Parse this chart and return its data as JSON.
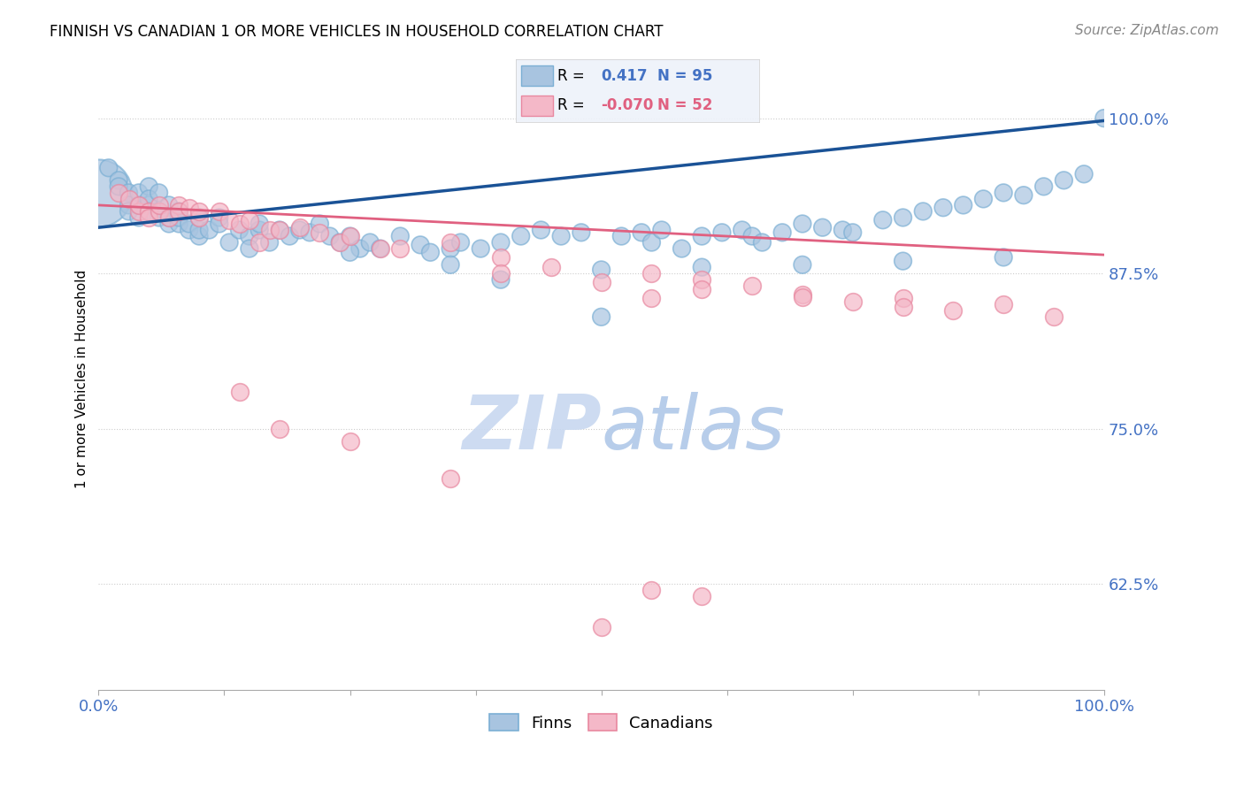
{
  "title": "FINNISH VS CANADIAN 1 OR MORE VEHICLES IN HOUSEHOLD CORRELATION CHART",
  "source": "Source: ZipAtlas.com",
  "ylabel": "1 or more Vehicles in Household",
  "xlim": [
    0.0,
    1.0
  ],
  "ylim": [
    0.54,
    1.04
  ],
  "yticks": [
    0.625,
    0.75,
    0.875,
    1.0
  ],
  "ytick_labels": [
    "62.5%",
    "75.0%",
    "87.5%",
    "100.0%"
  ],
  "xticks": [
    0.0,
    0.125,
    0.25,
    0.375,
    0.5,
    0.625,
    0.75,
    0.875,
    1.0
  ],
  "xtick_labels": [
    "0.0%",
    "",
    "",
    "",
    "",
    "",
    "",
    "",
    "100.0%"
  ],
  "blue_R": 0.417,
  "blue_N": 95,
  "pink_R": -0.07,
  "pink_N": 52,
  "blue_scatter_x": [
    0.01,
    0.02,
    0.02,
    0.03,
    0.03,
    0.03,
    0.04,
    0.04,
    0.04,
    0.05,
    0.05,
    0.05,
    0.05,
    0.06,
    0.06,
    0.06,
    0.07,
    0.07,
    0.07,
    0.08,
    0.08,
    0.08,
    0.09,
    0.09,
    0.1,
    0.1,
    0.1,
    0.11,
    0.12,
    0.12,
    0.13,
    0.14,
    0.15,
    0.16,
    0.16,
    0.17,
    0.18,
    0.19,
    0.2,
    0.21,
    0.22,
    0.23,
    0.24,
    0.25,
    0.26,
    0.27,
    0.28,
    0.3,
    0.32,
    0.33,
    0.35,
    0.36,
    0.38,
    0.4,
    0.42,
    0.44,
    0.46,
    0.48,
    0.5,
    0.52,
    0.54,
    0.55,
    0.56,
    0.58,
    0.6,
    0.62,
    0.64,
    0.65,
    0.66,
    0.68,
    0.7,
    0.72,
    0.74,
    0.75,
    0.78,
    0.8,
    0.82,
    0.84,
    0.86,
    0.88,
    0.9,
    0.92,
    0.94,
    0.96,
    0.98,
    1.0,
    0.4,
    0.5,
    0.35,
    0.6,
    0.7,
    0.8,
    0.9,
    0.25,
    0.15
  ],
  "blue_scatter_y": [
    0.96,
    0.95,
    0.945,
    0.94,
    0.93,
    0.925,
    0.92,
    0.93,
    0.94,
    0.945,
    0.93,
    0.925,
    0.935,
    0.92,
    0.925,
    0.94,
    0.915,
    0.92,
    0.93,
    0.915,
    0.92,
    0.925,
    0.91,
    0.915,
    0.905,
    0.91,
    0.92,
    0.91,
    0.92,
    0.915,
    0.9,
    0.91,
    0.905,
    0.91,
    0.915,
    0.9,
    0.91,
    0.905,
    0.91,
    0.908,
    0.915,
    0.905,
    0.9,
    0.905,
    0.895,
    0.9,
    0.895,
    0.905,
    0.898,
    0.892,
    0.895,
    0.9,
    0.895,
    0.9,
    0.905,
    0.91,
    0.905,
    0.908,
    0.84,
    0.905,
    0.908,
    0.9,
    0.91,
    0.895,
    0.905,
    0.908,
    0.91,
    0.905,
    0.9,
    0.908,
    0.915,
    0.912,
    0.91,
    0.908,
    0.918,
    0.92,
    0.925,
    0.928,
    0.93,
    0.935,
    0.94,
    0.938,
    0.945,
    0.95,
    0.955,
    1.0,
    0.87,
    0.878,
    0.882,
    0.88,
    0.882,
    0.885,
    0.888,
    0.892,
    0.895
  ],
  "blue_scatter_sizes": [
    200,
    200,
    200,
    200,
    200,
    200,
    200,
    200,
    200,
    200,
    200,
    200,
    200,
    200,
    200,
    200,
    200,
    200,
    200,
    200,
    200,
    200,
    200,
    200,
    200,
    200,
    200,
    200,
    200,
    200,
    200,
    200,
    200,
    200,
    200,
    200,
    200,
    200,
    200,
    200,
    200,
    200,
    200,
    200,
    200,
    200,
    200,
    200,
    200,
    200,
    200,
    200,
    200,
    200,
    200,
    200,
    200,
    200,
    200,
    200,
    200,
    200,
    200,
    200,
    200,
    200,
    200,
    200,
    200,
    200,
    200,
    200,
    200,
    200,
    200,
    200,
    200,
    200,
    200,
    200,
    200,
    200,
    200,
    200,
    200,
    200,
    200,
    200,
    200,
    200,
    200,
    200,
    200,
    200,
    200
  ],
  "blue_large_x": [
    0.0
  ],
  "blue_large_y": [
    0.94
  ],
  "blue_large_size": [
    3000
  ],
  "pink_scatter_x": [
    0.02,
    0.03,
    0.04,
    0.04,
    0.05,
    0.05,
    0.06,
    0.06,
    0.07,
    0.08,
    0.08,
    0.09,
    0.1,
    0.1,
    0.12,
    0.13,
    0.14,
    0.15,
    0.16,
    0.17,
    0.18,
    0.2,
    0.14,
    0.22,
    0.24,
    0.25,
    0.28,
    0.3,
    0.35,
    0.4,
    0.18,
    0.25,
    0.35,
    0.45,
    0.55,
    0.6,
    0.65,
    0.55,
    0.4,
    0.5,
    0.6,
    0.7,
    0.8,
    0.55,
    0.6,
    0.5,
    0.7,
    0.75,
    0.8,
    0.85,
    0.9,
    0.95
  ],
  "pink_scatter_y": [
    0.94,
    0.935,
    0.925,
    0.93,
    0.925,
    0.92,
    0.925,
    0.93,
    0.92,
    0.93,
    0.925,
    0.928,
    0.92,
    0.925,
    0.925,
    0.918,
    0.915,
    0.918,
    0.9,
    0.91,
    0.91,
    0.912,
    0.78,
    0.908,
    0.9,
    0.905,
    0.895,
    0.895,
    0.9,
    0.888,
    0.75,
    0.74,
    0.71,
    0.88,
    0.875,
    0.87,
    0.865,
    0.855,
    0.875,
    0.868,
    0.862,
    0.858,
    0.855,
    0.62,
    0.615,
    0.59,
    0.856,
    0.852,
    0.848,
    0.845,
    0.85,
    0.84
  ],
  "blue_line_x": [
    0.0,
    1.0
  ],
  "blue_line_y": [
    0.912,
    0.998
  ],
  "pink_line_x": [
    0.0,
    1.0
  ],
  "pink_line_y": [
    0.93,
    0.89
  ],
  "blue_color": "#a8c4e0",
  "blue_edge_color": "#7bafd4",
  "pink_color": "#f4b8c8",
  "pink_edge_color": "#e888a0",
  "blue_line_color": "#1a5296",
  "pink_line_color": "#e06080",
  "tick_label_color": "#4472c4",
  "source_color": "#888888",
  "legend_R_color_blue": "#4472c4",
  "legend_R_color_pink": "#e06080",
  "watermark_color": "#c8d8f0",
  "grid_color": "#cccccc",
  "grid_linestyle": ":",
  "legend_bg_color": "#eef2fa"
}
